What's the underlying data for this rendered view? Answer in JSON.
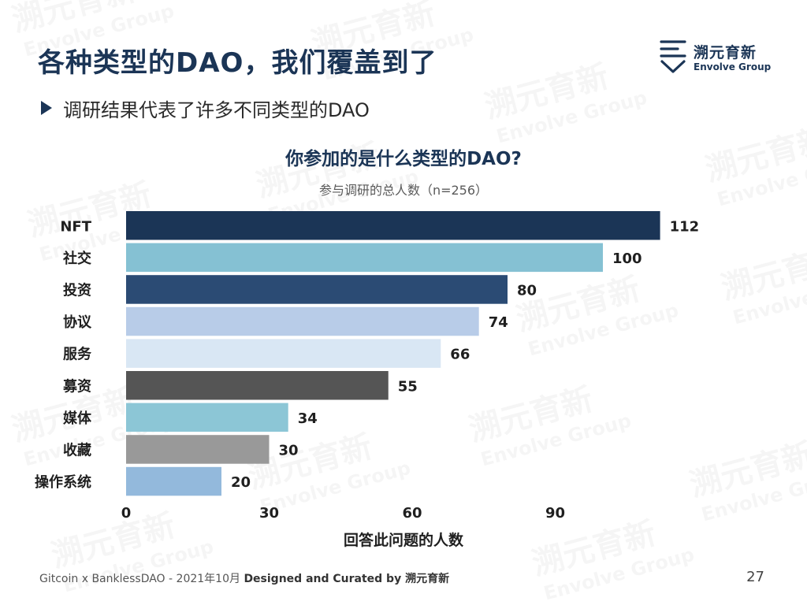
{
  "slide": {
    "title": "各种类型的DAO，我们覆盖到了",
    "bullet": "调研结果代表了许多不同类型的DAO"
  },
  "logo": {
    "name_cn": "溯元育新",
    "name_en": "Envolve Group"
  },
  "chart_data": {
    "type": "bar",
    "orientation": "horizontal",
    "title": "你参加的是什么类型的DAO?",
    "subtitle": "参与调研的总人数（n=256）",
    "xlabel": "回答此问题的人数",
    "ylabel": "",
    "categories": [
      "NFT",
      "社交",
      "投资",
      "协议",
      "服务",
      "募资",
      "媒体",
      "收藏",
      "操作系统"
    ],
    "values": [
      112,
      100,
      80,
      74,
      66,
      55,
      34,
      30,
      20
    ],
    "colors": [
      "#1b3556",
      "#85c1d3",
      "#2b4b74",
      "#b8cce8",
      "#d9e7f4",
      "#555555",
      "#8cc6d6",
      "#999999",
      "#93b9dc"
    ],
    "xlim": [
      0,
      120
    ],
    "xticks": [
      0,
      30,
      60,
      90
    ],
    "grid": false,
    "data_labels": true
  },
  "footer": {
    "source": "Gitcoin x BanklessDAO - 2021年10月",
    "credit": "Designed and Curated by 溯元育新",
    "page": "27"
  },
  "watermark": {
    "text_cn": "溯元育新",
    "text_en": "Envolve Group"
  }
}
